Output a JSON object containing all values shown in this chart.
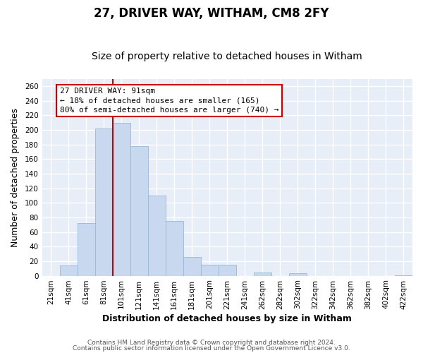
{
  "title": "27, DRIVER WAY, WITHAM, CM8 2FY",
  "subtitle": "Size of property relative to detached houses in Witham",
  "xlabel": "Distribution of detached houses by size in Witham",
  "ylabel": "Number of detached properties",
  "bar_color": "#c8d8ee",
  "bar_edge_color": "#9ab8d8",
  "categories": [
    "21sqm",
    "41sqm",
    "61sqm",
    "81sqm",
    "101sqm",
    "121sqm",
    "141sqm",
    "161sqm",
    "181sqm",
    "201sqm",
    "221sqm",
    "241sqm",
    "262sqm",
    "282sqm",
    "302sqm",
    "322sqm",
    "342sqm",
    "362sqm",
    "382sqm",
    "402sqm",
    "422sqm"
  ],
  "values": [
    0,
    14,
    72,
    202,
    210,
    178,
    110,
    75,
    26,
    15,
    15,
    0,
    4,
    0,
    3,
    0,
    0,
    0,
    0,
    0,
    1
  ],
  "ylim": [
    0,
    270
  ],
  "yticks": [
    0,
    20,
    40,
    60,
    80,
    100,
    120,
    140,
    160,
    180,
    200,
    220,
    240,
    260
  ],
  "vline_color": "#cc0000",
  "annotation_line1": "27 DRIVER WAY: 91sqm",
  "annotation_line2": "← 18% of detached houses are smaller (165)",
  "annotation_line3": "80% of semi-detached houses are larger (740) →",
  "footer_line1": "Contains HM Land Registry data © Crown copyright and database right 2024.",
  "footer_line2": "Contains public sector information licensed under the Open Government Licence v3.0.",
  "fig_bg_color": "#ffffff",
  "plot_bg_color": "#e8eef8",
  "grid_color": "#ffffff",
  "title_fontsize": 12,
  "subtitle_fontsize": 10,
  "label_fontsize": 9,
  "tick_fontsize": 7.5,
  "footer_fontsize": 6.5,
  "annot_fontsize": 8
}
